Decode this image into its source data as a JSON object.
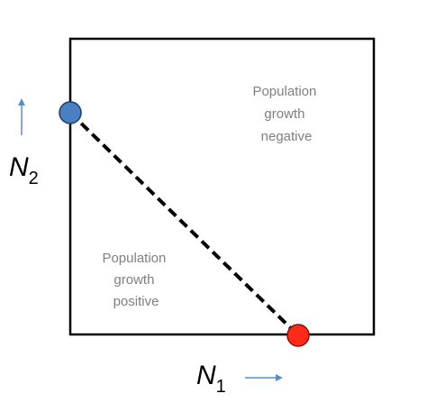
{
  "diagram": {
    "region_upper": {
      "lines": [
        "Population",
        "growth",
        "negative"
      ]
    },
    "region_lower": {
      "lines": [
        "Population",
        "growth",
        "positive"
      ]
    },
    "axis_vertical": {
      "symbol": "N",
      "subscript": "2"
    },
    "axis_horizontal": {
      "symbol": "N",
      "subscript": "1"
    },
    "colors": {
      "box": "#000000",
      "isocline": "#000000",
      "point_n2_intercept": "#4a7fc1",
      "point_n1_intercept": "#ff2a1a",
      "arrows": "#5b8ec9",
      "label_text": "#7f7f7f"
    }
  }
}
